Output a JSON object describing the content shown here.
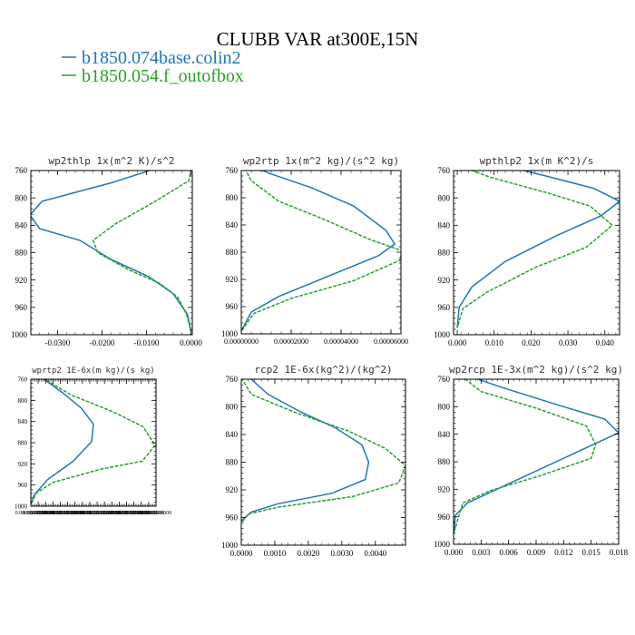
{
  "figure": {
    "title": "CLUBB VAR at300E,15N",
    "legend": [
      {
        "label": "b1850.074base.colin2",
        "color": "#1f77b4",
        "dash": false
      },
      {
        "label": "b1850.054.f_outofbox",
        "color": "#2ca02c",
        "dash": true
      }
    ]
  },
  "chart_data": [
    {
      "type": "line",
      "title": "wp2thlp  1x(m^2 K)/s^2",
      "xlim": [
        -0.036,
        0.0003
      ],
      "ylim": [
        760,
        1000
      ],
      "y_inverted": true,
      "xticks": [
        -0.03,
        -0.02,
        -0.01,
        0.0
      ],
      "xtick_labels": [
        "-0.0300",
        "-0.0200",
        "-0.0100",
        "0.0000"
      ],
      "yticks": [
        760,
        800,
        840,
        880,
        920,
        960,
        1000
      ],
      "series": [
        {
          "x": [
            -0.0045,
            -0.018,
            -0.0335,
            -0.0362,
            -0.034,
            -0.025,
            -0.018,
            -0.0095,
            -0.004,
            -0.0008,
            0.0
          ],
          "y": [
            750,
            778,
            805,
            825,
            845,
            862,
            890,
            915,
            940,
            970,
            995
          ]
        },
        {
          "x": [
            0.0003,
            -0.0005,
            -0.008,
            -0.017,
            -0.022,
            -0.021,
            -0.014,
            -0.007,
            -0.003,
            -0.001,
            0.0
          ],
          "y": [
            750,
            775,
            805,
            838,
            862,
            880,
            905,
            925,
            945,
            970,
            995
          ]
        }
      ]
    },
    {
      "type": "line",
      "title": "wp2rtp  1x(m^2 kg)/(s^2 kg)",
      "xlim": [
        0.0,
        6.4e-05
      ],
      "ylim": [
        760,
        1000
      ],
      "y_inverted": true,
      "xticks": [
        0.0,
        2e-05,
        4e-05,
        6e-05
      ],
      "xtick_labels": [
        "0.00000000",
        "0.00002000",
        "0.00004000",
        "0.00006000"
      ],
      "yticks": [
        760,
        800,
        840,
        880,
        920,
        960,
        1000
      ],
      "series": [
        {
          "x": [
            1.5e-06,
            1.2e-05,
            2.8e-05,
            4.5e-05,
            5.8e-05,
            6.15e-05,
            5.5e-05,
            3.5e-05,
            1.5e-05,
            4e-06,
            0.0
          ],
          "y": [
            750,
            765,
            785,
            812,
            848,
            868,
            885,
            915,
            945,
            968,
            996
          ]
        },
        {
          "x": [
            5e-07,
            4e-06,
            1.5e-05,
            3.2e-05,
            5.2e-05,
            6.45e-05,
            6.35e-05,
            4.5e-05,
            2e-05,
            5e-06,
            0.0
          ],
          "y": [
            750,
            775,
            805,
            830,
            862,
            878,
            892,
            922,
            948,
            970,
            996
          ]
        }
      ]
    },
    {
      "type": "line",
      "title": "wpthlp2  1x(m K^2)/s",
      "xlim": [
        -0.001,
        0.044
      ],
      "ylim": [
        760,
        1000
      ],
      "y_inverted": true,
      "xticks": [
        0.0,
        0.01,
        0.02,
        0.03,
        0.04
      ],
      "xtick_labels": [
        "0.000",
        "0.010",
        "0.020",
        "0.030",
        "0.040"
      ],
      "yticks": [
        760,
        800,
        840,
        880,
        920,
        960,
        1000
      ],
      "series": [
        {
          "x": [
            0.012,
            0.024,
            0.037,
            0.044,
            0.039,
            0.027,
            0.013,
            0.004,
            0.0005,
            0.0
          ],
          "y": [
            752,
            768,
            786,
            805,
            826,
            855,
            893,
            930,
            960,
            990
          ]
        },
        {
          "x": [
            0.0,
            0.009,
            0.024,
            0.036,
            0.042,
            0.035,
            0.021,
            0.008,
            0.0015,
            0.0
          ],
          "y": [
            752,
            770,
            792,
            812,
            840,
            872,
            902,
            938,
            962,
            990
          ]
        }
      ]
    },
    {
      "type": "line",
      "title": "wprtp2  1E-6x(m kg)/(s kg)",
      "xlim": [
        0.0,
        6.8e-05
      ],
      "ylim": [
        760,
        1000
      ],
      "y_inverted": true,
      "xticks": [
        0.0,
        4e-06,
        8e-06,
        1.2e-05,
        1.6e-05,
        2e-05,
        2.4e-05,
        2.8e-05,
        3.2e-05,
        3.6e-05,
        4e-05,
        4.4e-05,
        4.8e-05,
        5.2e-05,
        5.6e-05,
        6e-05,
        6.4e-05,
        6.8e-05
      ],
      "xtick_labels": [
        "0.0000000000",
        "0.0000000000",
        "0.0000000000",
        "0.0000000000",
        "0.0000000000",
        "0.0000000000",
        "0.0000000000",
        "0.0000000000",
        "0.0000000000",
        "0.0000000000",
        "0.0000000000",
        "0.0000000000",
        "0.0000000000",
        "0.0000000000",
        "0.0000000000",
        "0.0000000000",
        "0.0000000000",
        "0.0000000000"
      ],
      "yticks": [
        760,
        800,
        840,
        880,
        920,
        960,
        1000
      ],
      "series": [
        {
          "x": [
            6e-06,
            1.7e-05,
            2.75e-05,
            3.4e-05,
            3.3e-05,
            2.3e-05,
            9e-06,
            2e-06,
            0.0
          ],
          "y": [
            757,
            785,
            815,
            845,
            878,
            915,
            950,
            978,
            996
          ]
        },
        {
          "x": [
            6e-06,
            2.2e-05,
            4.5e-05,
            6.1e-05,
            6.75e-05,
            6.05e-05,
            3.8e-05,
            1.2e-05,
            3e-06,
            0.0
          ],
          "y": [
            757,
            790,
            822,
            850,
            885,
            915,
            930,
            955,
            975,
            996
          ]
        }
      ]
    },
    {
      "type": "line",
      "title": "rcp2  1E-6x(kg^2)/(kg^2)",
      "xlim": [
        0.0,
        0.0049
      ],
      "ylim": [
        760,
        1000
      ],
      "y_inverted": true,
      "xticks": [
        0.0,
        0.001,
        0.002,
        0.003,
        0.004
      ],
      "xtick_labels": [
        "0.0000",
        "0.0010",
        "0.0020",
        "0.0030",
        "0.0040"
      ],
      "yticks": [
        760,
        800,
        840,
        880,
        920,
        960,
        1000
      ],
      "series": [
        {
          "x": [
            0.00025,
            0.0008,
            0.0018,
            0.0028,
            0.0036,
            0.0038,
            0.0037,
            0.0027,
            0.0011,
            0.0003,
            0.0
          ],
          "y": [
            758,
            782,
            808,
            830,
            855,
            880,
            905,
            925,
            940,
            952,
            965
          ]
        },
        {
          "x": [
            0.0,
            0.0003,
            0.0016,
            0.0032,
            0.0043,
            0.0049,
            0.0047,
            0.0033,
            0.0011,
            0.0002,
            0.0
          ],
          "y": [
            758,
            782,
            808,
            835,
            860,
            885,
            910,
            930,
            945,
            955,
            968
          ]
        }
      ]
    },
    {
      "type": "line",
      "title": "wp2rcp  1E-3x(m^2 kg)/(s^2 kg)",
      "xlim": [
        0.0,
        0.018
      ],
      "ylim": [
        760,
        1000
      ],
      "y_inverted": true,
      "xticks": [
        0.0,
        0.003,
        0.006,
        0.009,
        0.012,
        0.015,
        0.018
      ],
      "xtick_labels": [
        "0.000",
        "0.003",
        "0.006",
        "0.009",
        "0.012",
        "0.015",
        "0.018"
      ],
      "yticks": [
        760,
        800,
        840,
        880,
        920,
        960,
        1000
      ],
      "series": [
        {
          "x": [
            0.0015,
            0.006,
            0.0115,
            0.0165,
            0.018,
            0.0115,
            0.006,
            0.0015,
            0.0002,
            0.0
          ],
          "y": [
            755,
            775,
            798,
            818,
            838,
            878,
            912,
            940,
            958,
            985
          ]
        },
        {
          "x": [
            0.0008,
            0.003,
            0.009,
            0.0145,
            0.0155,
            0.015,
            0.0095,
            0.004,
            0.001,
            0.0
          ],
          "y": [
            755,
            778,
            802,
            828,
            855,
            875,
            900,
            922,
            940,
            985
          ]
        }
      ]
    }
  ]
}
